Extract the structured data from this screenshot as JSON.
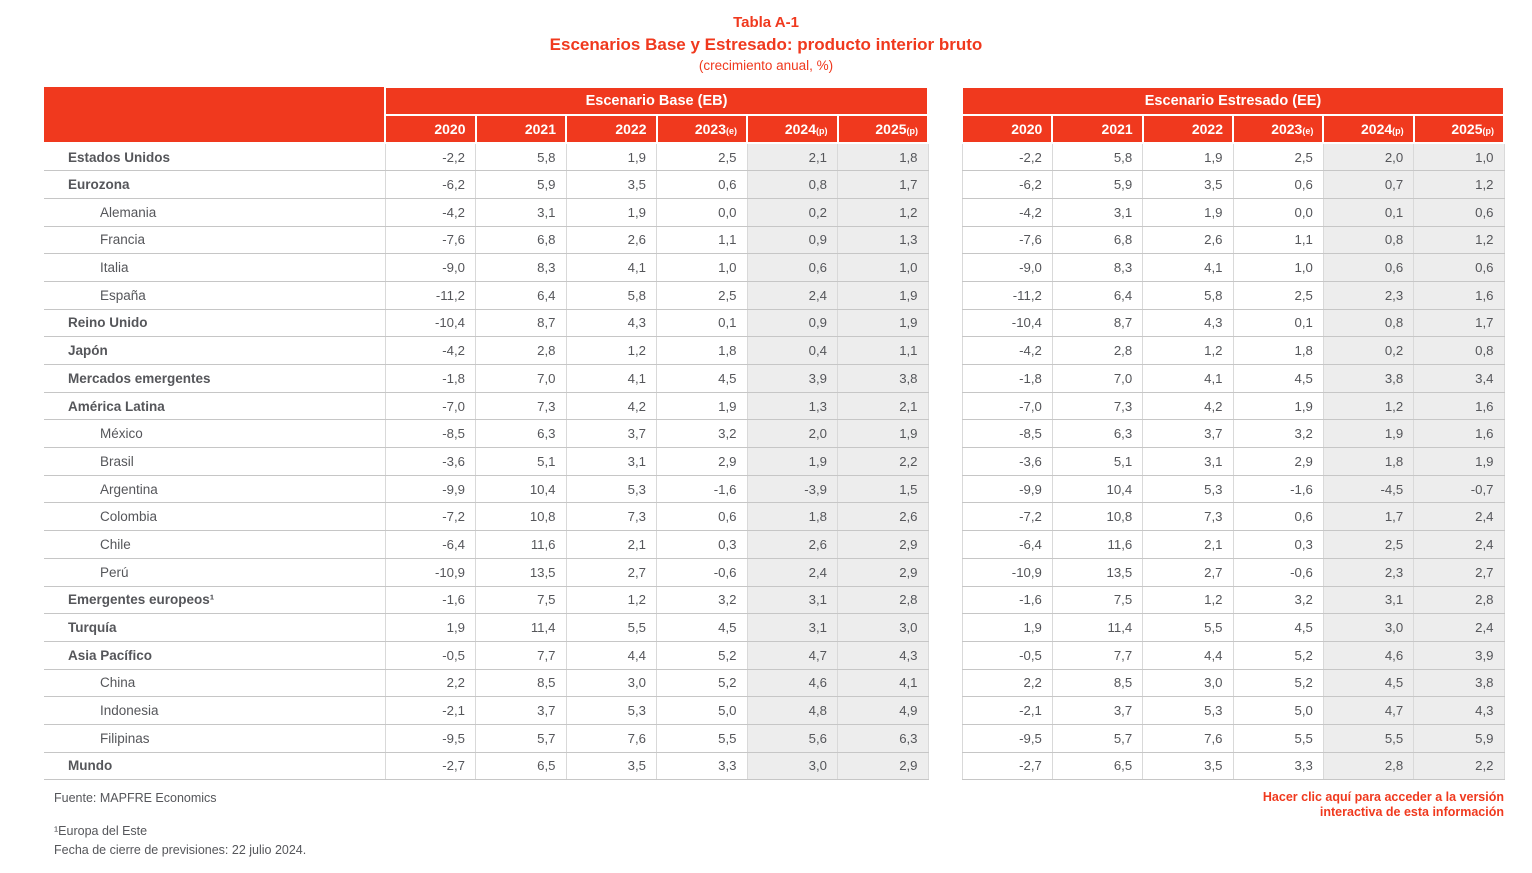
{
  "title": {
    "line1": "Tabla A-1",
    "line2": "Escenarios Base y Estresado: producto interior bruto",
    "line3": "(crecimiento anual, %)"
  },
  "colors": {
    "accent_red": "#F0391E",
    "text_gray": "#55565A",
    "shaded_column_bg": "#EDEDED",
    "horizontal_border": "#C6C6C6",
    "vertical_border": "#D9D9D9"
  },
  "table": {
    "group_headers": [
      "Escenario Base (EB)",
      "Escenario Estresado (EE)"
    ],
    "year_columns": [
      {
        "year": "2020",
        "suffix": ""
      },
      {
        "year": "2021",
        "suffix": ""
      },
      {
        "year": "2022",
        "suffix": ""
      },
      {
        "year": "2023",
        "suffix": "(e)"
      },
      {
        "year": "2024",
        "suffix": "(p)"
      },
      {
        "year": "2025",
        "suffix": "(p)"
      }
    ],
    "shaded_year_indexes": [
      4,
      5
    ],
    "rows": [
      {
        "label": "Estados Unidos",
        "bold": true,
        "indent": false,
        "eb": [
          "-2,2",
          "5,8",
          "1,9",
          "2,5",
          "2,1",
          "1,8"
        ],
        "ee": [
          "-2,2",
          "5,8",
          "1,9",
          "2,5",
          "2,0",
          "1,0"
        ]
      },
      {
        "label": "Eurozona",
        "bold": true,
        "indent": false,
        "eb": [
          "-6,2",
          "5,9",
          "3,5",
          "0,6",
          "0,8",
          "1,7"
        ],
        "ee": [
          "-6,2",
          "5,9",
          "3,5",
          "0,6",
          "0,7",
          "1,2"
        ]
      },
      {
        "label": "Alemania",
        "bold": false,
        "indent": true,
        "eb": [
          "-4,2",
          "3,1",
          "1,9",
          "0,0",
          "0,2",
          "1,2"
        ],
        "ee": [
          "-4,2",
          "3,1",
          "1,9",
          "0,0",
          "0,1",
          "0,6"
        ]
      },
      {
        "label": "Francia",
        "bold": false,
        "indent": true,
        "eb": [
          "-7,6",
          "6,8",
          "2,6",
          "1,1",
          "0,9",
          "1,3"
        ],
        "ee": [
          "-7,6",
          "6,8",
          "2,6",
          "1,1",
          "0,8",
          "1,2"
        ]
      },
      {
        "label": "Italia",
        "bold": false,
        "indent": true,
        "eb": [
          "-9,0",
          "8,3",
          "4,1",
          "1,0",
          "0,6",
          "1,0"
        ],
        "ee": [
          "-9,0",
          "8,3",
          "4,1",
          "1,0",
          "0,6",
          "0,6"
        ]
      },
      {
        "label": "España",
        "bold": false,
        "indent": true,
        "eb": [
          "-11,2",
          "6,4",
          "5,8",
          "2,5",
          "2,4",
          "1,9"
        ],
        "ee": [
          "-11,2",
          "6,4",
          "5,8",
          "2,5",
          "2,3",
          "1,6"
        ]
      },
      {
        "label": "Reino Unido",
        "bold": true,
        "indent": false,
        "eb": [
          "-10,4",
          "8,7",
          "4,3",
          "0,1",
          "0,9",
          "1,9"
        ],
        "ee": [
          "-10,4",
          "8,7",
          "4,3",
          "0,1",
          "0,8",
          "1,7"
        ]
      },
      {
        "label": "Japón",
        "bold": true,
        "indent": false,
        "eb": [
          "-4,2",
          "2,8",
          "1,2",
          "1,8",
          "0,4",
          "1,1"
        ],
        "ee": [
          "-4,2",
          "2,8",
          "1,2",
          "1,8",
          "0,2",
          "0,8"
        ]
      },
      {
        "label": "Mercados emergentes",
        "bold": true,
        "indent": false,
        "eb": [
          "-1,8",
          "7,0",
          "4,1",
          "4,5",
          "3,9",
          "3,8"
        ],
        "ee": [
          "-1,8",
          "7,0",
          "4,1",
          "4,5",
          "3,8",
          "3,4"
        ]
      },
      {
        "label": "América Latina",
        "bold": true,
        "indent": false,
        "eb": [
          "-7,0",
          "7,3",
          "4,2",
          "1,9",
          "1,3",
          "2,1"
        ],
        "ee": [
          "-7,0",
          "7,3",
          "4,2",
          "1,9",
          "1,2",
          "1,6"
        ]
      },
      {
        "label": "México",
        "bold": false,
        "indent": true,
        "eb": [
          "-8,5",
          "6,3",
          "3,7",
          "3,2",
          "2,0",
          "1,9"
        ],
        "ee": [
          "-8,5",
          "6,3",
          "3,7",
          "3,2",
          "1,9",
          "1,6"
        ]
      },
      {
        "label": "Brasil",
        "bold": false,
        "indent": true,
        "eb": [
          "-3,6",
          "5,1",
          "3,1",
          "2,9",
          "1,9",
          "2,2"
        ],
        "ee": [
          "-3,6",
          "5,1",
          "3,1",
          "2,9",
          "1,8",
          "1,9"
        ]
      },
      {
        "label": "Argentina",
        "bold": false,
        "indent": true,
        "eb": [
          "-9,9",
          "10,4",
          "5,3",
          "-1,6",
          "-3,9",
          "1,5"
        ],
        "ee": [
          "-9,9",
          "10,4",
          "5,3",
          "-1,6",
          "-4,5",
          "-0,7"
        ]
      },
      {
        "label": "Colombia",
        "bold": false,
        "indent": true,
        "eb": [
          "-7,2",
          "10,8",
          "7,3",
          "0,6",
          "1,8",
          "2,6"
        ],
        "ee": [
          "-7,2",
          "10,8",
          "7,3",
          "0,6",
          "1,7",
          "2,4"
        ]
      },
      {
        "label": "Chile",
        "bold": false,
        "indent": true,
        "eb": [
          "-6,4",
          "11,6",
          "2,1",
          "0,3",
          "2,6",
          "2,9"
        ],
        "ee": [
          "-6,4",
          "11,6",
          "2,1",
          "0,3",
          "2,5",
          "2,4"
        ]
      },
      {
        "label": "Perú",
        "bold": false,
        "indent": true,
        "eb": [
          "-10,9",
          "13,5",
          "2,7",
          "-0,6",
          "2,4",
          "2,9"
        ],
        "ee": [
          "-10,9",
          "13,5",
          "2,7",
          "-0,6",
          "2,3",
          "2,7"
        ]
      },
      {
        "label": "Emergentes europeos¹",
        "bold": true,
        "indent": false,
        "eb": [
          "-1,6",
          "7,5",
          "1,2",
          "3,2",
          "3,1",
          "2,8"
        ],
        "ee": [
          "-1,6",
          "7,5",
          "1,2",
          "3,2",
          "3,1",
          "2,8"
        ]
      },
      {
        "label": "Turquía",
        "bold": true,
        "indent": false,
        "eb": [
          "1,9",
          "11,4",
          "5,5",
          "4,5",
          "3,1",
          "3,0"
        ],
        "ee": [
          "1,9",
          "11,4",
          "5,5",
          "4,5",
          "3,0",
          "2,4"
        ]
      },
      {
        "label": "Asia Pacífico",
        "bold": true,
        "indent": false,
        "eb": [
          "-0,5",
          "7,7",
          "4,4",
          "5,2",
          "4,7",
          "4,3"
        ],
        "ee": [
          "-0,5",
          "7,7",
          "4,4",
          "5,2",
          "4,6",
          "3,9"
        ]
      },
      {
        "label": "China",
        "bold": false,
        "indent": true,
        "eb": [
          "2,2",
          "8,5",
          "3,0",
          "5,2",
          "4,6",
          "4,1"
        ],
        "ee": [
          "2,2",
          "8,5",
          "3,0",
          "5,2",
          "4,5",
          "3,8"
        ]
      },
      {
        "label": "Indonesia",
        "bold": false,
        "indent": true,
        "eb": [
          "-2,1",
          "3,7",
          "5,3",
          "5,0",
          "4,8",
          "4,9"
        ],
        "ee": [
          "-2,1",
          "3,7",
          "5,3",
          "5,0",
          "4,7",
          "4,3"
        ]
      },
      {
        "label": "Filipinas",
        "bold": false,
        "indent": true,
        "eb": [
          "-9,5",
          "5,7",
          "7,6",
          "5,5",
          "5,6",
          "6,3"
        ],
        "ee": [
          "-9,5",
          "5,7",
          "7,6",
          "5,5",
          "5,5",
          "5,9"
        ]
      },
      {
        "label": "Mundo",
        "bold": true,
        "indent": false,
        "eb": [
          "-2,7",
          "6,5",
          "3,5",
          "3,3",
          "3,0",
          "2,9"
        ],
        "ee": [
          "-2,7",
          "6,5",
          "3,5",
          "3,3",
          "2,8",
          "2,2"
        ]
      }
    ]
  },
  "footer": {
    "source": "Fuente: MAPFRE Economics",
    "footnote1": "¹Europa del Este",
    "footnote2": "Fecha de cierre de previsiones: 22 julio 2024.",
    "link_line1": "Hacer clic aquí para acceder a la versión",
    "link_line2": "interactiva de esta información"
  }
}
